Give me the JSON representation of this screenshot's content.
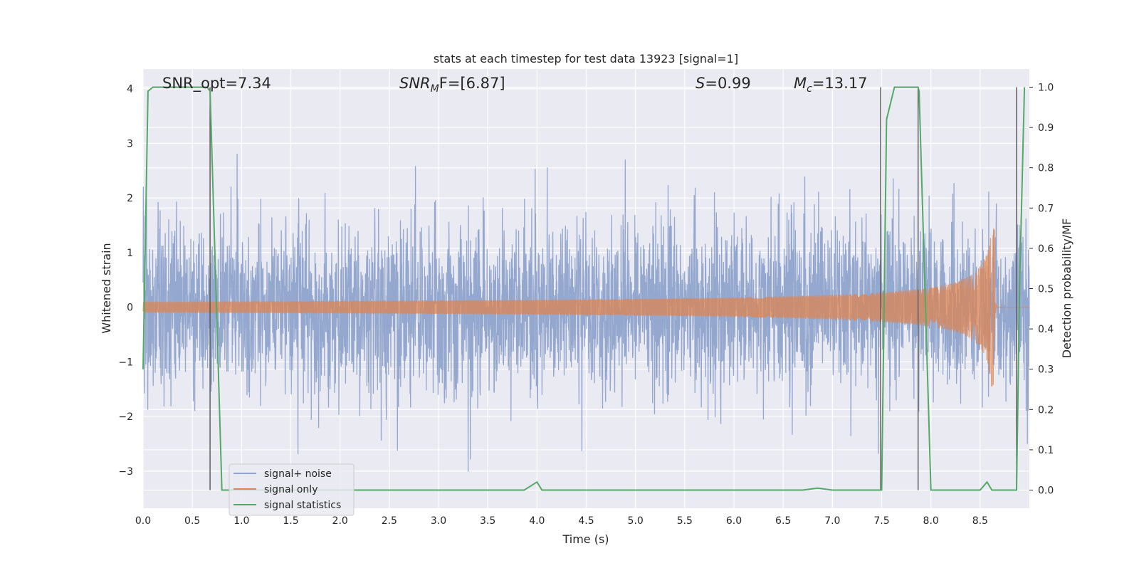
{
  "chart_data": {
    "type": "line",
    "title": "stats at each timestep for test data 13923 [signal=1]",
    "xlabel": "Time (s)",
    "ylabel": "Whitened strain",
    "y2label": "Detection probability/MF",
    "xlim": [
      0.0,
      9.0
    ],
    "ylim": [
      -3.68,
      4.36
    ],
    "y2lim": [
      -0.045,
      1.045
    ],
    "grid": true,
    "legend_position": "lower-left",
    "x_ticks": [
      "0.0",
      "0.5",
      "1.0",
      "1.5",
      "2.0",
      "2.5",
      "3.0",
      "3.5",
      "4.0",
      "4.5",
      "5.0",
      "5.5",
      "6.0",
      "6.5",
      "7.0",
      "7.5",
      "8.0",
      "8.5"
    ],
    "y_ticks": [
      "4",
      "3",
      "2",
      "1",
      "0",
      "−1",
      "−2",
      "−3"
    ],
    "y2_ticks": [
      "1.0",
      "0.9",
      "0.8",
      "0.7",
      "0.6",
      "0.5",
      "0.4",
      "0.3",
      "0.2",
      "0.1",
      "0.0"
    ],
    "annotations": [
      {
        "text": "SNR_opt=7.34",
        "x": 0.2
      },
      {
        "text_main": "SNR",
        "text_sub": "M",
        "text_rest": "F=[6.87]",
        "x": 2.6
      },
      {
        "text_main": "S",
        "text_rest": "=0.99",
        "x": 5.6
      },
      {
        "text_main": "M",
        "text_sub": "c",
        "text_rest": "=13.17",
        "x": 6.6
      }
    ],
    "vertical_lines": [
      0.68,
      7.49,
      7.87,
      8.87
    ],
    "series": [
      {
        "name": "signal+ noise",
        "color": "#8fa3cb",
        "kind": "noise",
        "sigma": 0.78,
        "n_samples": 3600
      },
      {
        "name": "signal only",
        "color": "#dd8452",
        "kind": "chirp",
        "t_coalesce": 8.65,
        "peak_amplitude": 1.45
      },
      {
        "name": "signal statistics",
        "color": "#55a868",
        "axis": "right",
        "x": [
          0.0,
          0.05,
          0.1,
          0.5,
          0.65,
          0.68,
          0.8,
          1.0,
          2.0,
          3.0,
          3.87,
          4.0,
          4.05,
          5.0,
          6.0,
          6.7,
          6.85,
          7.0,
          7.48,
          7.5,
          7.55,
          7.63,
          7.87,
          7.88,
          8.0,
          8.1,
          8.5,
          8.57,
          8.62,
          8.87,
          8.9,
          8.95
        ],
        "y": [
          0.3,
          0.99,
          1.0,
          1.0,
          1.0,
          0.99,
          0.0,
          0.0,
          0.0,
          0.0,
          0.0,
          0.02,
          0.0,
          0.0,
          0.0,
          0.0,
          0.005,
          0.0,
          0.0,
          0.0,
          0.92,
          1.0,
          1.0,
          0.99,
          0.0,
          0.0,
          0.0,
          0.02,
          0.0,
          0.0,
          0.5,
          1.0
        ]
      }
    ]
  }
}
